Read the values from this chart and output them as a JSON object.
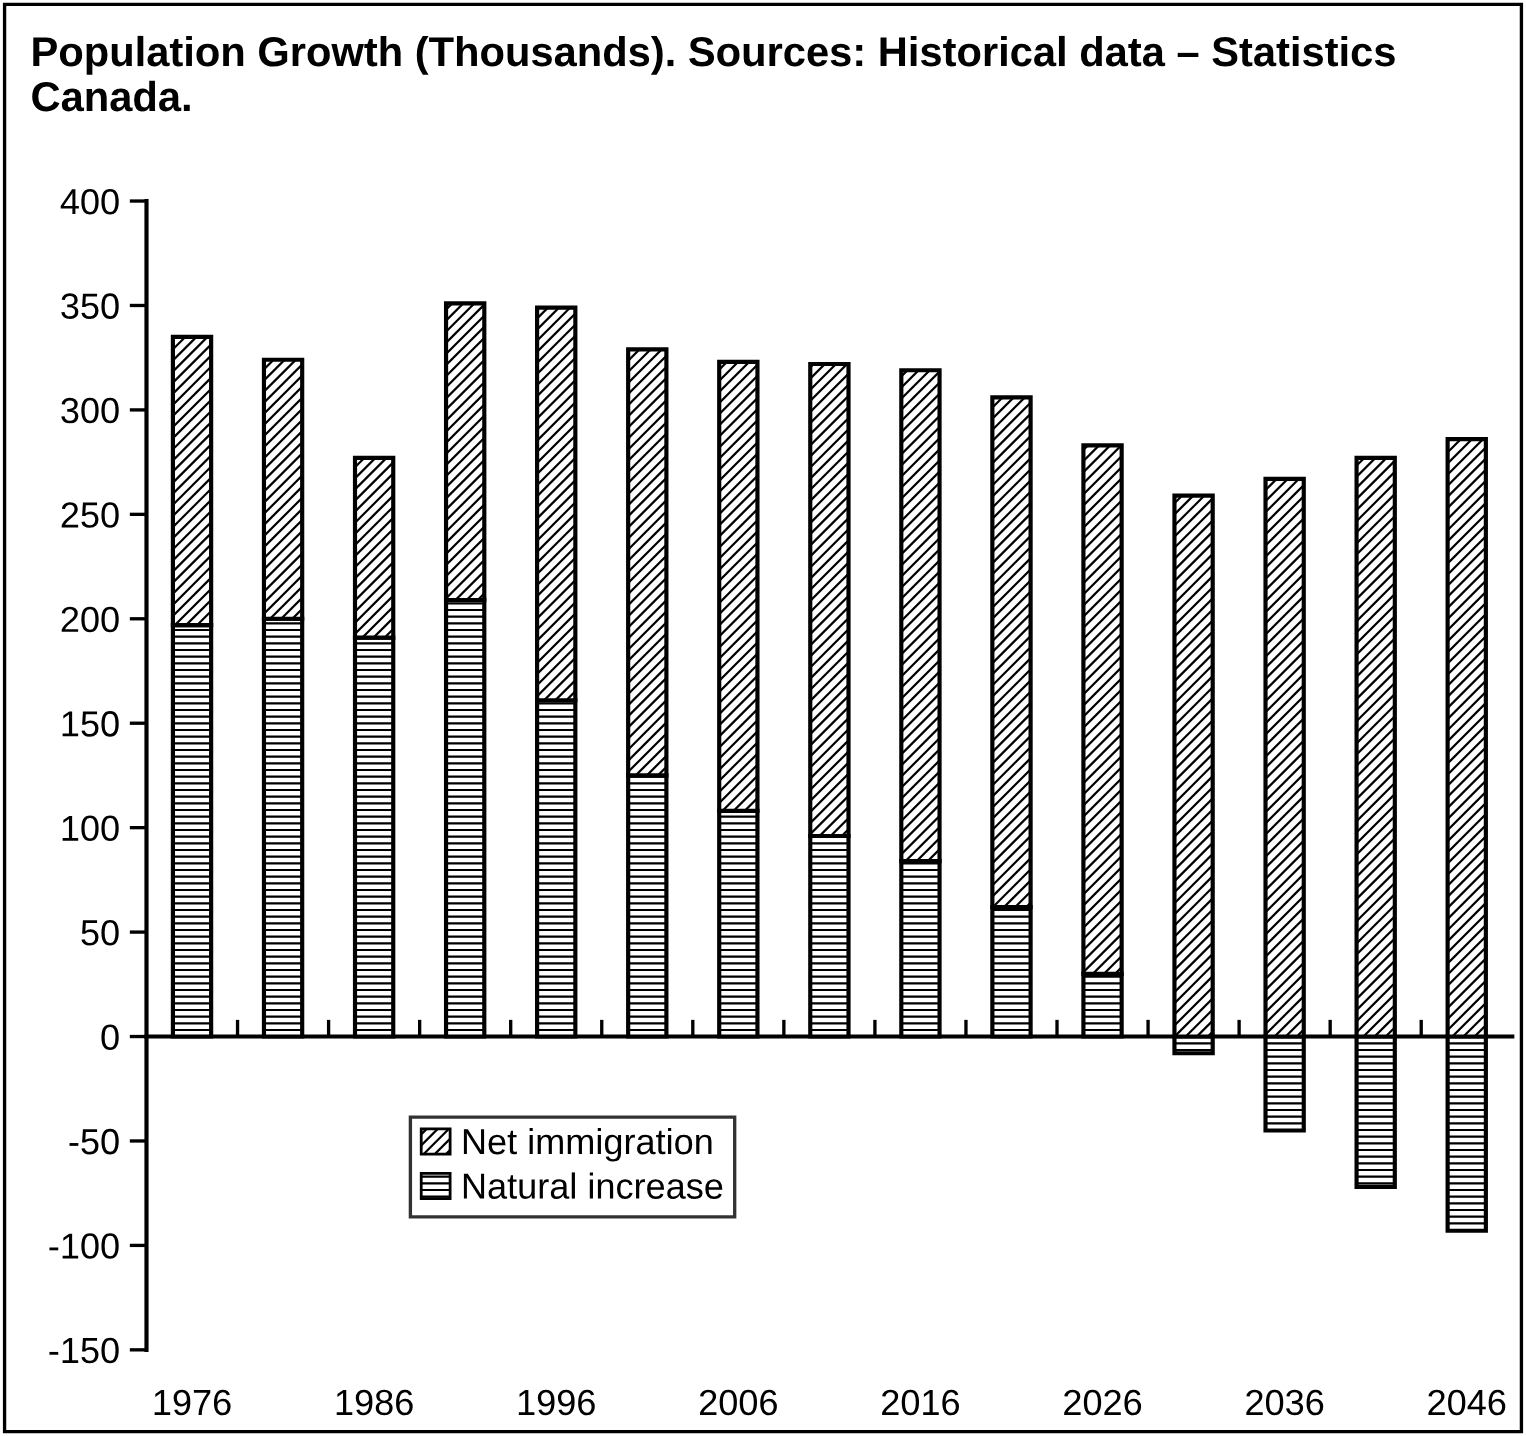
{
  "chart_data": {
    "type": "bar",
    "title": "Population Growth (Thousands). Sources: Historical data – Statistics Canada.",
    "categories": [
      "1976",
      null,
      "1986",
      null,
      "1996",
      null,
      "2006",
      null,
      "2016",
      null,
      "2026",
      null,
      "2036",
      null,
      "2046"
    ],
    "stacked": true,
    "series": [
      {
        "name": "Natural increase",
        "color": "#000000",
        "values": [
          197,
          200,
          191,
          209,
          161,
          125,
          108,
          96,
          84,
          62,
          30,
          -8,
          -45,
          -72,
          -93
        ]
      },
      {
        "name": "Net immigration",
        "color": "#000000",
        "values": [
          138,
          124,
          86,
          142,
          188,
          204,
          215,
          226,
          235,
          244,
          253,
          259,
          267,
          277,
          286
        ]
      }
    ],
    "ylim": [
      -150,
      400
    ],
    "yticks": [
      -150,
      -100,
      -50,
      0,
      50,
      100,
      150,
      200,
      250,
      300,
      350,
      400
    ],
    "legend": "bottom left"
  }
}
